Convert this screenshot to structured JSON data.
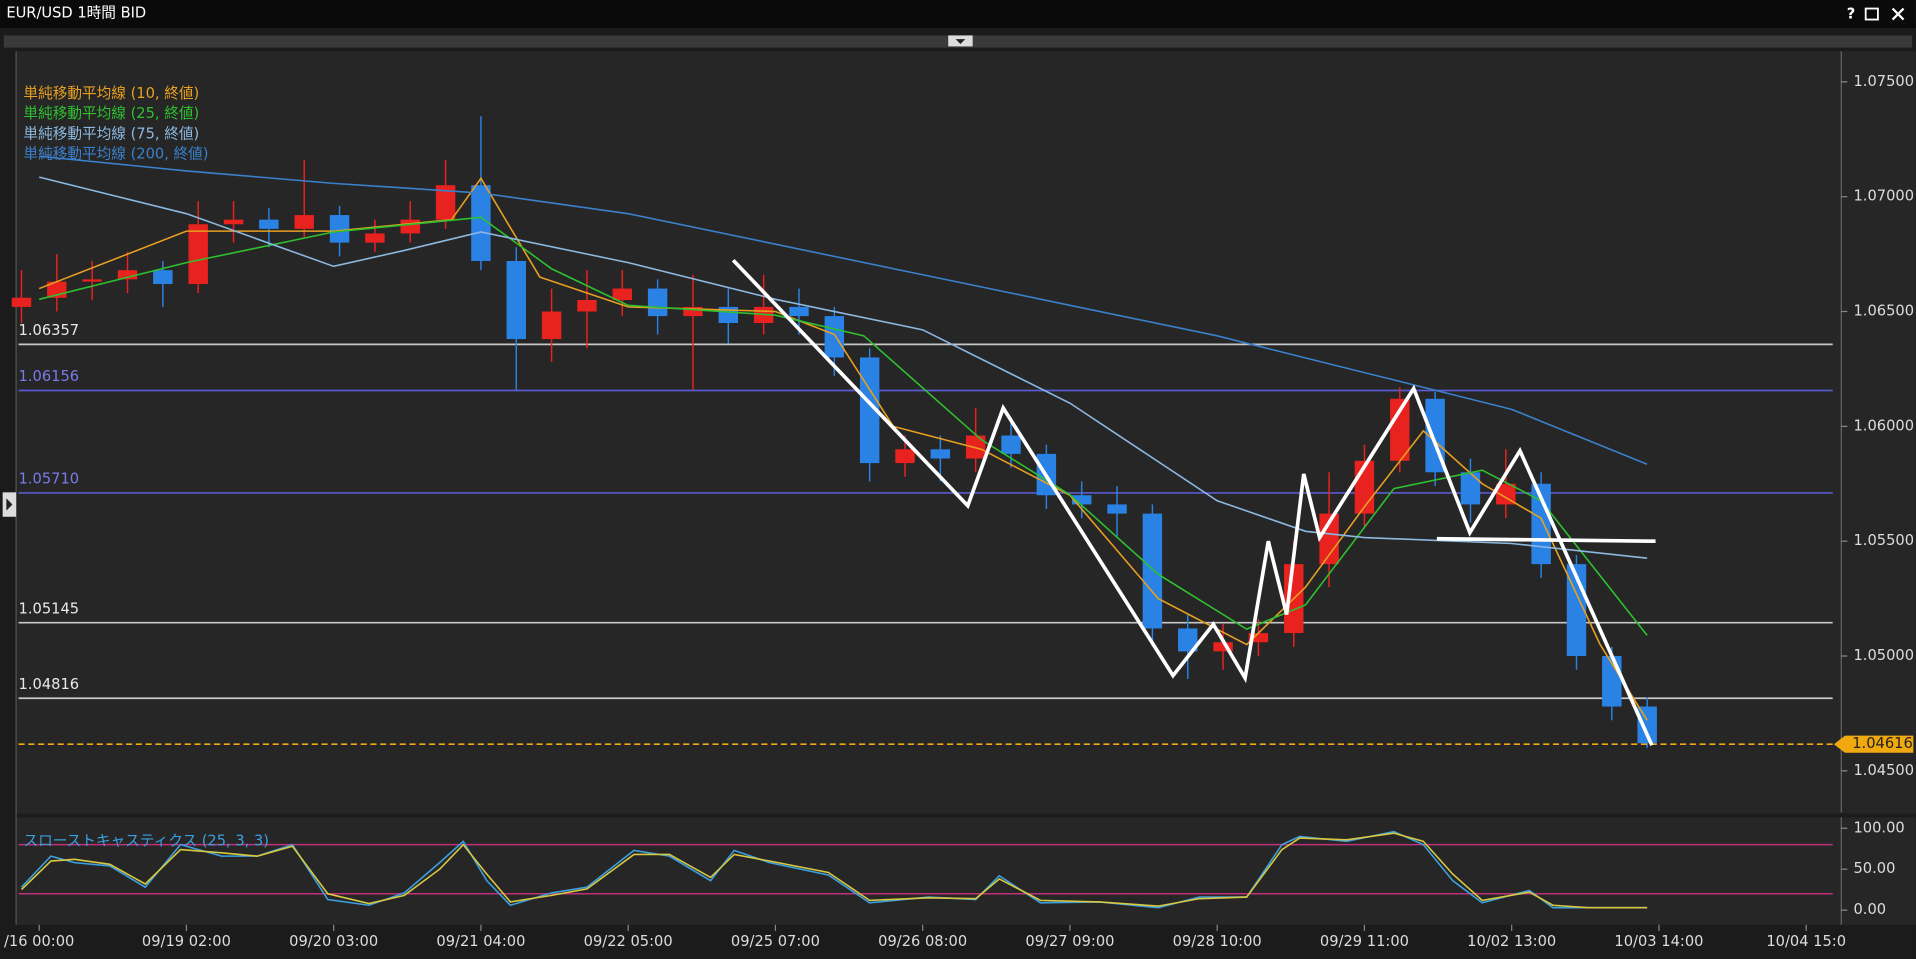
{
  "window": {
    "title": "EUR/USD 1時間 BID",
    "help": "?"
  },
  "chart_data": [
    {
      "type": "candlestick",
      "up_color": "#e8221e",
      "down_color": "#2a82e4",
      "x": [
        -3,
        3,
        9,
        15,
        21,
        27,
        33,
        39,
        45,
        51,
        57,
        63,
        69,
        75,
        81,
        87,
        93,
        99,
        105,
        111,
        117,
        123,
        129,
        135,
        141,
        147,
        153,
        159,
        165,
        171,
        177,
        183,
        189,
        195,
        201,
        207,
        213,
        219,
        225,
        231,
        237,
        243,
        249,
        255,
        261,
        267,
        273
      ],
      "open": [
        1.0652,
        1.0656,
        1.0663,
        1.0664,
        1.0668,
        1.0662,
        1.0688,
        1.069,
        1.0686,
        1.0692,
        1.068,
        1.0684,
        1.069,
        1.0705,
        1.0672,
        1.0638,
        1.065,
        1.0655,
        1.066,
        1.0648,
        1.0652,
        1.0645,
        1.0652,
        1.0648,
        1.063,
        1.0584,
        1.059,
        1.0586,
        1.0596,
        1.0588,
        1.057,
        1.0566,
        1.0562,
        1.0512,
        1.0502,
        1.0506,
        1.051,
        1.054,
        1.0562,
        1.0585,
        1.0612,
        1.058,
        1.0566,
        1.0575,
        1.054,
        1.05,
        1.0478
      ],
      "high": [
        1.0668,
        1.0675,
        1.0672,
        1.0676,
        1.0672,
        1.0698,
        1.0698,
        1.0695,
        1.0716,
        1.0696,
        1.069,
        1.0698,
        1.0716,
        1.0735,
        1.0678,
        1.066,
        1.0668,
        1.0668,
        1.0664,
        1.0666,
        1.066,
        1.0666,
        1.066,
        1.0652,
        1.0634,
        1.0596,
        1.0596,
        1.0608,
        1.0604,
        1.0592,
        1.0576,
        1.0574,
        1.0566,
        1.0518,
        1.0514,
        1.0516,
        1.055,
        1.058,
        1.0592,
        1.0617,
        1.0615,
        1.0586,
        1.059,
        1.058,
        1.0544,
        1.0504,
        1.0482
      ],
      "low": [
        1.0645,
        1.065,
        1.0655,
        1.0658,
        1.0652,
        1.0658,
        1.068,
        1.0678,
        1.0682,
        1.0674,
        1.0676,
        1.068,
        1.0686,
        1.0668,
        1.0616,
        1.0628,
        1.0634,
        1.0648,
        1.064,
        1.0616,
        1.0636,
        1.064,
        1.064,
        1.0622,
        1.0576,
        1.0578,
        1.0576,
        1.058,
        1.0582,
        1.0564,
        1.056,
        1.0552,
        1.0504,
        1.049,
        1.0494,
        1.05,
        1.0504,
        1.053,
        1.0556,
        1.058,
        1.0574,
        1.0558,
        1.056,
        1.0534,
        1.0494,
        1.0472,
        1.046
      ],
      "close": [
        1.0656,
        1.0663,
        1.0664,
        1.0668,
        1.0662,
        1.0688,
        1.069,
        1.0686,
        1.0692,
        1.068,
        1.0684,
        1.069,
        1.0705,
        1.0672,
        1.0638,
        1.065,
        1.0655,
        1.066,
        1.0648,
        1.0652,
        1.0645,
        1.0652,
        1.0648,
        1.063,
        1.0584,
        1.059,
        1.0586,
        1.0596,
        1.0588,
        1.057,
        1.0566,
        1.0562,
        1.0512,
        1.0502,
        1.0506,
        1.051,
        1.054,
        1.0562,
        1.0585,
        1.0612,
        1.058,
        1.0566,
        1.0575,
        1.054,
        1.05,
        1.0478,
        1.0462
      ],
      "series": [
        {
          "name": "単純移動平均線 (10, 終値)",
          "color": "#e8a020",
          "x": [
            0,
            25,
            50,
            70,
            75,
            85,
            100,
            125,
            135,
            145,
            160,
            175,
            190,
            205,
            215,
            225,
            235,
            245,
            255,
            265,
            273
          ],
          "values": [
            1.066,
            1.0685,
            1.0685,
            1.069,
            1.0708,
            1.0665,
            1.0652,
            1.065,
            1.064,
            1.06,
            1.059,
            1.057,
            1.0525,
            1.0505,
            1.053,
            1.0565,
            1.0598,
            1.0575,
            1.056,
            1.0505,
            1.0472
          ]
        },
        {
          "name": "単純移動平均線 (25, 終値)",
          "color": "#2fc02f",
          "x": [
            0,
            25,
            50,
            75,
            87,
            100,
            125,
            140,
            160,
            175,
            190,
            205,
            215,
            230,
            245,
            255,
            273
          ],
          "values": [
            1.06553,
            1.06713,
            1.06846,
            1.0691,
            1.06686,
            1.06527,
            1.06484,
            1.06394,
            1.05941,
            1.05702,
            1.05356,
            1.05117,
            1.05223,
            1.05729,
            1.05809,
            1.05676,
            1.0509
          ]
        },
        {
          "name": "単純移動平均線 (75, 終値)",
          "color": "#8cb8e0",
          "x": [
            0,
            25,
            50,
            62,
            75,
            100,
            125,
            150,
            175,
            200,
            215,
            225,
            250,
            273
          ],
          "values": [
            1.07085,
            1.06926,
            1.06697,
            1.06766,
            1.06846,
            1.06713,
            1.06553,
            1.0642,
            1.06101,
            1.05676,
            1.05543,
            1.05516,
            1.0549,
            1.05426
          ]
        },
        {
          "name": "単純移動平均線 (200, 終値)",
          "color": "#3a80cc",
          "x": [
            0,
            25,
            50,
            75,
            100,
            125,
            150,
            175,
            200,
            225,
            250,
            273
          ],
          "values": [
            1.07176,
            1.07112,
            1.07058,
            1.07016,
            1.06926,
            1.06793,
            1.0666,
            1.06527,
            1.06394,
            1.06234,
            1.06074,
            1.05835
          ]
        }
      ],
      "levels": [
        {
          "value": 1.06357,
          "color": "#c8c8c8"
        },
        {
          "value": 1.06156,
          "color": "#5a5ad0"
        },
        {
          "value": 1.0571,
          "label": "1.05710",
          "color": "#5a5ad0"
        },
        {
          "value": 1.05145,
          "color": "#c8c8c8"
        },
        {
          "value": 1.04816,
          "color": "#c8c8c8"
        }
      ],
      "current": {
        "value": 1.04616,
        "color": "#f0aa10"
      },
      "xlim": [
        -3.5,
        304.5
      ],
      "ylim": [
        1.04319,
        1.07633
      ],
      "yticks": [
        {
          "value": 1.045,
          "label": "1.04500"
        },
        {
          "value": 1.05,
          "label": "1.05000"
        },
        {
          "value": 1.055,
          "label": "1.05500"
        },
        {
          "value": 1.06,
          "label": "1.06000"
        },
        {
          "value": 1.065,
          "label": "1.06500"
        },
        {
          "value": 1.07,
          "label": "1.07000"
        },
        {
          "value": 1.075,
          "label": "1.07500"
        }
      ]
    },
    {
      "type": "line",
      "legend_title": "スローストキャスティクス (25, 3, 3)",
      "band_color": "#c0307a",
      "bands": [
        80,
        20
      ],
      "series": [
        {
          "color": "#3aa0e0",
          "x": [
            -3,
            2,
            6,
            12,
            18,
            24,
            31,
            37,
            43,
            49,
            56,
            62,
            68,
            72,
            76,
            80,
            87,
            93,
            101,
            107,
            114,
            118,
            124,
            134,
            141,
            151,
            159,
            163,
            170,
            180,
            190,
            197,
            205,
            211,
            214,
            222,
            230,
            235,
            240,
            245,
            253,
            257,
            263,
            273
          ],
          "values": [
            28,
            66,
            58,
            54,
            28,
            80,
            66,
            66,
            80,
            13,
            6,
            21,
            58,
            84,
            36,
            6,
            21,
            28,
            73,
            66,
            36,
            73,
            58,
            43,
            9,
            16,
            13,
            42,
            9,
            10,
            3,
            16,
            16,
            80,
            90,
            84,
            96,
            80,
            36,
            9,
            24,
            3,
            3,
            3
          ]
        },
        {
          "color": "#d8c840",
          "x": [
            -3,
            2,
            6,
            12,
            18,
            24,
            31,
            37,
            43,
            49,
            56,
            62,
            68,
            72,
            76,
            80,
            87,
            93,
            101,
            107,
            114,
            118,
            124,
            134,
            141,
            151,
            159,
            163,
            170,
            180,
            190,
            197,
            205,
            211,
            214,
            222,
            230,
            235,
            240,
            245,
            253,
            257,
            263,
            273
          ],
          "values": [
            25,
            60,
            62,
            56,
            32,
            74,
            70,
            66,
            78,
            20,
            8,
            18,
            50,
            80,
            44,
            10,
            18,
            26,
            68,
            68,
            40,
            68,
            60,
            46,
            12,
            15,
            14,
            38,
            12,
            10,
            5,
            14,
            16,
            74,
            88,
            86,
            94,
            84,
            44,
            12,
            22,
            6,
            3,
            3
          ]
        }
      ],
      "xlim": [
        -3.5,
        304.5
      ],
      "ylim": [
        -17.9,
        113.4
      ],
      "yticks": [
        {
          "value": 0,
          "label": "0.00"
        },
        {
          "value": 50,
          "label": "50.00"
        },
        {
          "value": 100,
          "label": "100.00"
        }
      ],
      "xticks": [
        {
          "value": 0,
          "label": "/16 00:00"
        },
        {
          "value": 25,
          "label": "09/19 02:00"
        },
        {
          "value": 50,
          "label": "09/20 03:00"
        },
        {
          "value": 75,
          "label": "09/21 04:00"
        },
        {
          "value": 100,
          "label": "09/22 05:00"
        },
        {
          "value": 125,
          "label": "09/25 07:00"
        },
        {
          "value": 150,
          "label": "09/26 08:00"
        },
        {
          "value": 175,
          "label": "09/27 09:00"
        },
        {
          "value": 200,
          "label": "09/28 10:00"
        },
        {
          "value": 225,
          "label": "09/29 11:00"
        },
        {
          "value": 250,
          "label": "10/02 13:00"
        },
        {
          "value": 275,
          "label": "10/03 14:00"
        },
        {
          "value": 300,
          "label": "10/04 15:0"
        }
      ]
    }
  ]
}
